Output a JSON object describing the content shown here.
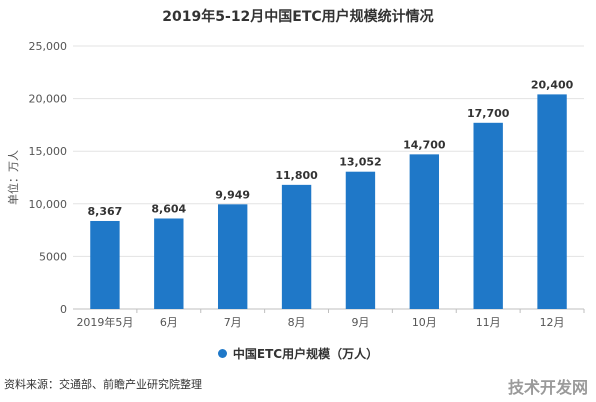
{
  "chart_data": {
    "type": "bar",
    "title": "2019年5-12月中国ETC用户规模统计情况",
    "ylabel": "单位：万人",
    "xlabel": "",
    "categories": [
      "2019年5月",
      "6月",
      "7月",
      "8月",
      "9月",
      "10月",
      "11月",
      "12月"
    ],
    "value_labels": [
      "8,367",
      "8,604",
      "9,949",
      "11,800",
      "13,052",
      "14,700",
      "17,700",
      "20,400"
    ],
    "series": [
      {
        "name": "中国ETC用户规模（万人）",
        "color": "#1f78c8",
        "values": [
          8367,
          8604,
          9949,
          11800,
          13052,
          14700,
          17700,
          20400
        ]
      }
    ],
    "ylim": [
      0,
      25000
    ],
    "yticks": [
      0,
      5000,
      10000,
      15000,
      20000,
      25000
    ],
    "ytick_labels": [
      "0",
      "5000",
      "10,000",
      "15,000",
      "20,000",
      "25,000"
    ],
    "grid": true,
    "legend": "bottom"
  },
  "footer": {
    "source": "资料来源：交通部、前瞻产业研究院整理",
    "watermark": "技术开发网"
  }
}
